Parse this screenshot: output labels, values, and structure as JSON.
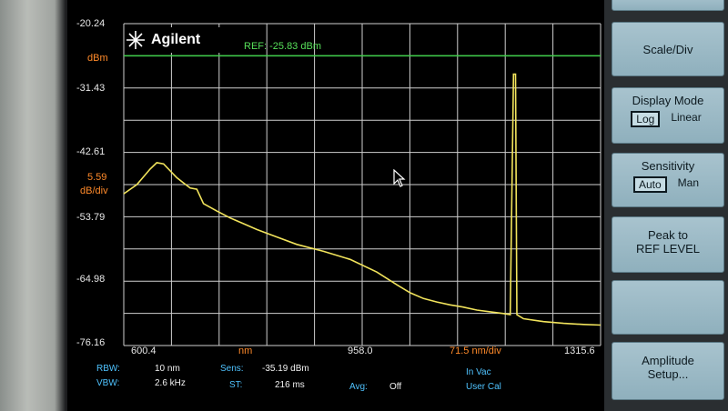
{
  "brand": {
    "name": "Agilent"
  },
  "reference": {
    "label": "REF: -25.83 dBm"
  },
  "y_axis": {
    "top": "-20.24",
    "unit": "dBm",
    "ticks": [
      "-31.43",
      "-42.61",
      "-53.79",
      "-64.98",
      "-76.16"
    ],
    "scale_value": "5.59",
    "scale_unit": "dB/div"
  },
  "x_axis": {
    "start": "600.4",
    "unit": "nm",
    "center": "958.0",
    "per_div": "71.5 nm/div",
    "end": "1315.6"
  },
  "status": {
    "rbw_label": "RBW:",
    "rbw_value": "10 nm",
    "vbw_label": "VBW:",
    "vbw_value": "2.6 kHz",
    "sens_label": "Sens:",
    "sens_value": "-35.19 dBm",
    "st_label": "ST:",
    "st_value": "216 ms",
    "avg_label": "Avg:",
    "avg_value": "Off",
    "medium": "In Vac",
    "cal": "User Cal"
  },
  "softkeys": {
    "scale_div": "Scale/Div",
    "display_mode": {
      "title": "Display Mode",
      "opt1": "Log",
      "opt2": "Linear"
    },
    "sensitivity": {
      "title": "Sensitivity",
      "opt1": "Auto",
      "opt2": "Man"
    },
    "peak_ref_line1": "Peak to",
    "peak_ref_line2": "REF LEVEL",
    "amplitude_line1": "Amplitude",
    "amplitude_line2": "Setup..."
  },
  "colors": {
    "trace": "#f2e45c",
    "grid": "#cfcfcf",
    "ref_line": "#3fcf4a",
    "label_orange": "#ff8a2a",
    "label_cyan": "#4fc3ff"
  },
  "chart_data": {
    "type": "line",
    "xlabel": "nm",
    "ylabel": "dBm",
    "xlim": [
      600.4,
      1315.6
    ],
    "ylim": [
      -76.16,
      -20.24
    ],
    "reference_level": -25.83,
    "grid": true,
    "series": [
      {
        "values_x": [
          600.4,
          620,
          640,
          650,
          660,
          680,
          690,
          700,
          710,
          720,
          740,
          760,
          780,
          800,
          830,
          860,
          900,
          940,
          980,
          1010,
          1030,
          1050,
          1070,
          1090,
          1110,
          1130,
          1150,
          1170,
          1180,
          1185,
          1188,
          1190,
          1200,
          1230,
          1260,
          1290,
          1315.6
        ],
        "values_y": [
          -49.8,
          -48.2,
          -45.5,
          -44.4,
          -44.6,
          -47.0,
          -47.9,
          -48.8,
          -49.0,
          -51.5,
          -52.8,
          -54.0,
          -55.0,
          -56.0,
          -57.3,
          -58.6,
          -59.8,
          -61.2,
          -63.4,
          -65.6,
          -67.0,
          -68.0,
          -68.6,
          -69.1,
          -69.5,
          -70.0,
          -70.3,
          -70.6,
          -70.8,
          -29.0,
          -29.0,
          -70.8,
          -71.5,
          -72.0,
          -72.3,
          -72.5,
          -72.6
        ]
      }
    ]
  }
}
